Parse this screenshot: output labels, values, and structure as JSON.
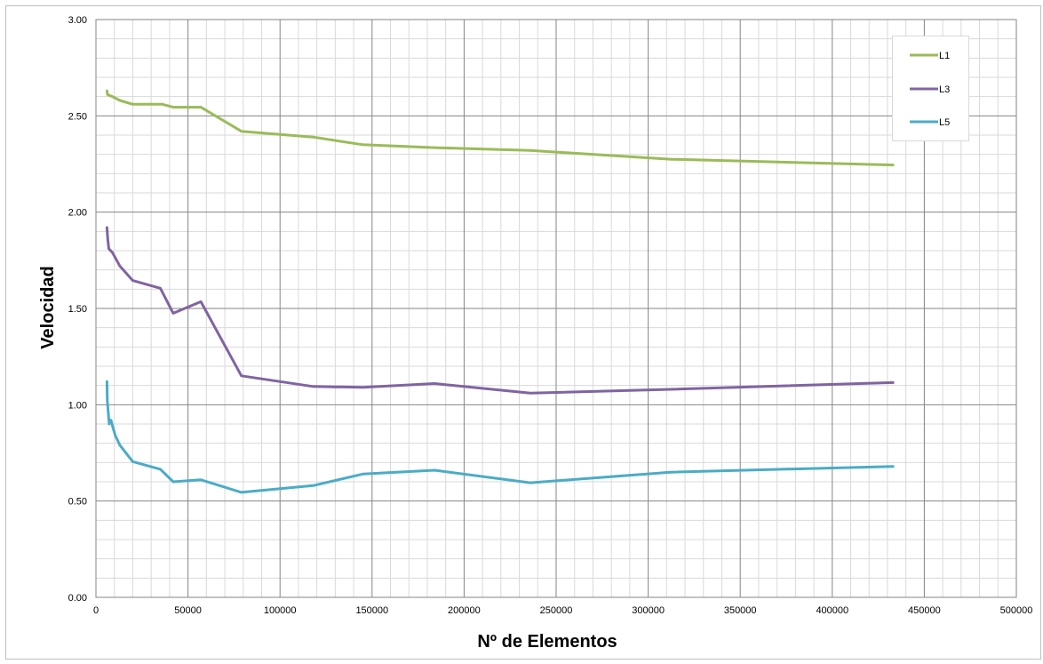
{
  "chart_data": {
    "type": "line",
    "title": "",
    "xlabel": "Nº de Elementos",
    "ylabel": "Velocidad",
    "xlim": [
      0,
      500000
    ],
    "ylim": [
      0,
      3
    ],
    "x_ticks": [
      0,
      50000,
      100000,
      150000,
      200000,
      250000,
      300000,
      350000,
      400000,
      450000,
      500000
    ],
    "x_tick_labels": [
      "0",
      "50000",
      "100000",
      "150000",
      "200000",
      "250000",
      "300000",
      "350000",
      "400000",
      "450000",
      "500000"
    ],
    "y_ticks": [
      0,
      0.5,
      1,
      1.5,
      2,
      2.5,
      3
    ],
    "y_tick_labels": [
      "0.00",
      "0.50",
      "1.00",
      "1.50",
      "2.00",
      "2.50",
      "3.00"
    ],
    "grid": true,
    "legend_position": "top-right",
    "series": [
      {
        "name": "L1",
        "color": "#9bbb59",
        "points": [
          [
            6000,
            2.63
          ],
          [
            6300,
            2.61
          ],
          [
            9000,
            2.6
          ],
          [
            13000,
            2.58
          ],
          [
            20000,
            2.56
          ],
          [
            36000,
            2.56
          ],
          [
            42000,
            2.545
          ],
          [
            57000,
            2.545
          ],
          [
            79000,
            2.42
          ],
          [
            118000,
            2.39
          ],
          [
            145000,
            2.35
          ],
          [
            184000,
            2.335
          ],
          [
            236000,
            2.32
          ],
          [
            312000,
            2.275
          ],
          [
            433000,
            2.245
          ]
        ]
      },
      {
        "name": "L3",
        "color": "#8064a2",
        "points": [
          [
            6000,
            1.92
          ],
          [
            6400,
            1.86
          ],
          [
            7000,
            1.81
          ],
          [
            9000,
            1.79
          ],
          [
            13000,
            1.72
          ],
          [
            20000,
            1.645
          ],
          [
            35000,
            1.605
          ],
          [
            42000,
            1.475
          ],
          [
            57000,
            1.535
          ],
          [
            79000,
            1.15
          ],
          [
            118000,
            1.095
          ],
          [
            145000,
            1.09
          ],
          [
            184000,
            1.11
          ],
          [
            236000,
            1.06
          ],
          [
            312000,
            1.08
          ],
          [
            433000,
            1.115
          ]
        ]
      },
      {
        "name": "L5",
        "color": "#4bacc6",
        "points": [
          [
            6000,
            1.12
          ],
          [
            6200,
            1.02
          ],
          [
            6600,
            0.97
          ],
          [
            7200,
            0.9
          ],
          [
            8200,
            0.92
          ],
          [
            9000,
            0.89
          ],
          [
            10500,
            0.84
          ],
          [
            13000,
            0.79
          ],
          [
            20000,
            0.705
          ],
          [
            35000,
            0.665
          ],
          [
            42000,
            0.6
          ],
          [
            57000,
            0.61
          ],
          [
            79000,
            0.545
          ],
          [
            118000,
            0.58
          ],
          [
            145000,
            0.64
          ],
          [
            184000,
            0.66
          ],
          [
            236000,
            0.595
          ],
          [
            312000,
            0.65
          ],
          [
            433000,
            0.68
          ]
        ]
      }
    ]
  }
}
